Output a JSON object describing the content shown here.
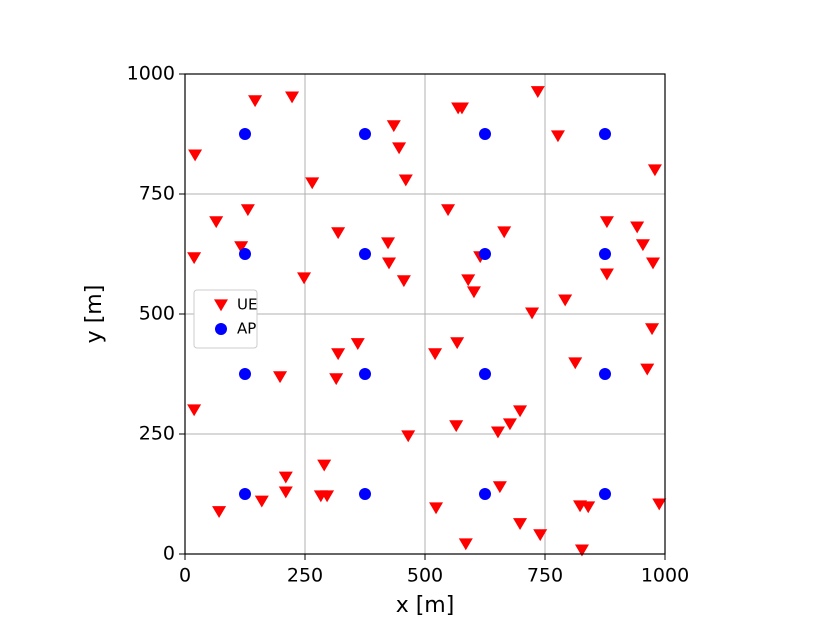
{
  "chart_data": {
    "type": "scatter",
    "xlabel": "x [m]",
    "ylabel": "y [m]",
    "xlim": [
      0,
      1000
    ],
    "ylim": [
      0,
      1000
    ],
    "xticks": [
      0,
      250,
      500,
      750,
      1000
    ],
    "yticks": [
      0,
      250,
      500,
      750,
      1000
    ],
    "grid": true,
    "legend_loc": "center left",
    "series": [
      {
        "name": "UE",
        "color": "#ff0000",
        "marker": "triangle-down",
        "x": [
          21,
          146,
          223,
          19,
          65,
          131,
          117,
          19,
          71,
          160,
          265,
          248,
          198,
          319,
          435,
          446,
          460,
          423,
          425,
          456,
          319,
          315,
          360,
          465,
          210,
          210,
          290,
          283,
          296,
          569,
          577,
          735,
          777,
          979,
          548,
          665,
          590,
          602,
          615,
          723,
          792,
          879,
          942,
          954,
          975,
          879,
          973,
          963,
          813,
          521,
          567,
          565,
          652,
          677,
          698,
          656,
          698,
          740,
          585,
          523,
          823,
          840,
          827,
          988
        ],
        "y": [
          831,
          944,
          952,
          617,
          692,
          717,
          640,
          300,
          88,
          110,
          773,
          575,
          369,
          669,
          892,
          846,
          779,
          648,
          606,
          569,
          417,
          365,
          438,
          246,
          160,
          129,
          185,
          121,
          121,
          929,
          929,
          963,
          871,
          800,
          717,
          671,
          571,
          546,
          619,
          502,
          529,
          692,
          681,
          644,
          606,
          583,
          469,
          385,
          398,
          417,
          440,
          267,
          254,
          271,
          298,
          140,
          63,
          40,
          21,
          96,
          100,
          98,
          8,
          104
        ]
      },
      {
        "name": "AP",
        "color": "#0000ff",
        "marker": "circle",
        "x": [
          125,
          375,
          625,
          875,
          125,
          375,
          625,
          875,
          125,
          375,
          625,
          875,
          125,
          375,
          625,
          875
        ],
        "y": [
          875,
          875,
          875,
          875,
          625,
          625,
          625,
          625,
          375,
          375,
          375,
          375,
          125,
          125,
          125,
          125
        ]
      }
    ]
  }
}
